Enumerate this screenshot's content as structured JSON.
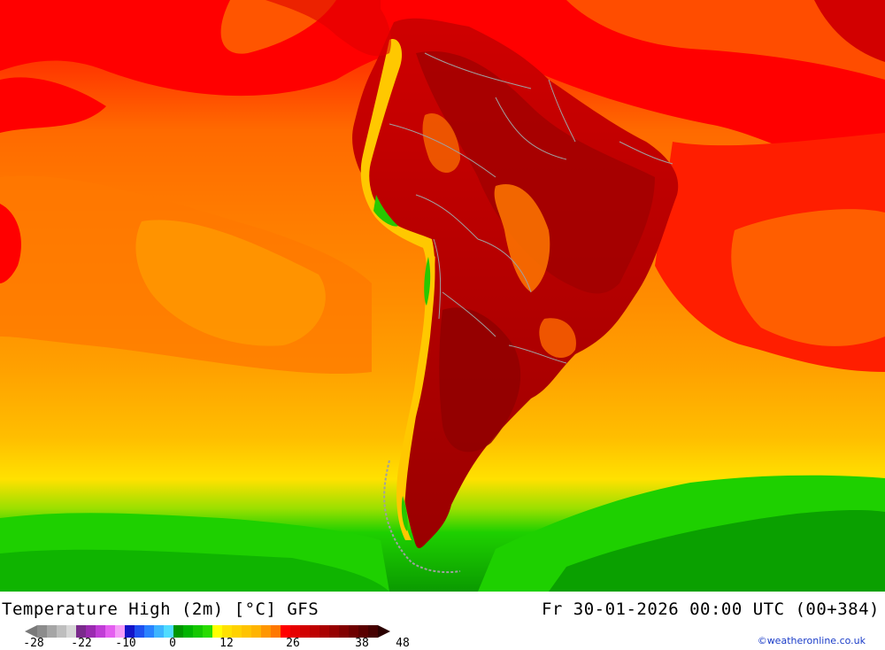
{
  "map": {
    "region": "South America",
    "colors": {
      "ocean_warm_north": "#ff0000",
      "ocean_orange": "#ff7a00",
      "ocean_light_orange": "#ff9a00",
      "ocean_yellow_orange": "#ffb400",
      "ocean_yellow": "#ffe000",
      "south_green": "#1ed000",
      "south_dark_green": "#0a9a00",
      "land_hot": "#c80000",
      "land_very_hot": "#960000",
      "andes_yellow": "#ffc800",
      "andes_green": "#28c800",
      "border": "#a0a0a0"
    }
  },
  "footer": {
    "title": "Temperature High (2m) [°C] GFS",
    "datetime": "Fr 30-01-2026 00:00 UTC (00+384)",
    "credit": "©weatheronline.co.uk"
  },
  "legend": {
    "colors": [
      "#8c8c8c",
      "#a5a5a5",
      "#bebebe",
      "#d7d7d7",
      "#7a2a8c",
      "#9a2ab0",
      "#c03cd6",
      "#e45ef0",
      "#f59cf8",
      "#1414c8",
      "#1e50f0",
      "#2882ff",
      "#3cb4ff",
      "#50dcff",
      "#009600",
      "#00b400",
      "#14c800",
      "#28dc00",
      "#ffff00",
      "#ffe100",
      "#ffd200",
      "#ffc300",
      "#ffb400",
      "#ff9600",
      "#ff7800",
      "#ff0000",
      "#e60000",
      "#d20000",
      "#be0000",
      "#aa0000",
      "#960000",
      "#820000",
      "#6e0000",
      "#5a0000",
      "#460000"
    ],
    "tick_labels": [
      "-28",
      "-22",
      "-10",
      "0",
      "12",
      "26",
      "38",
      "48"
    ]
  }
}
